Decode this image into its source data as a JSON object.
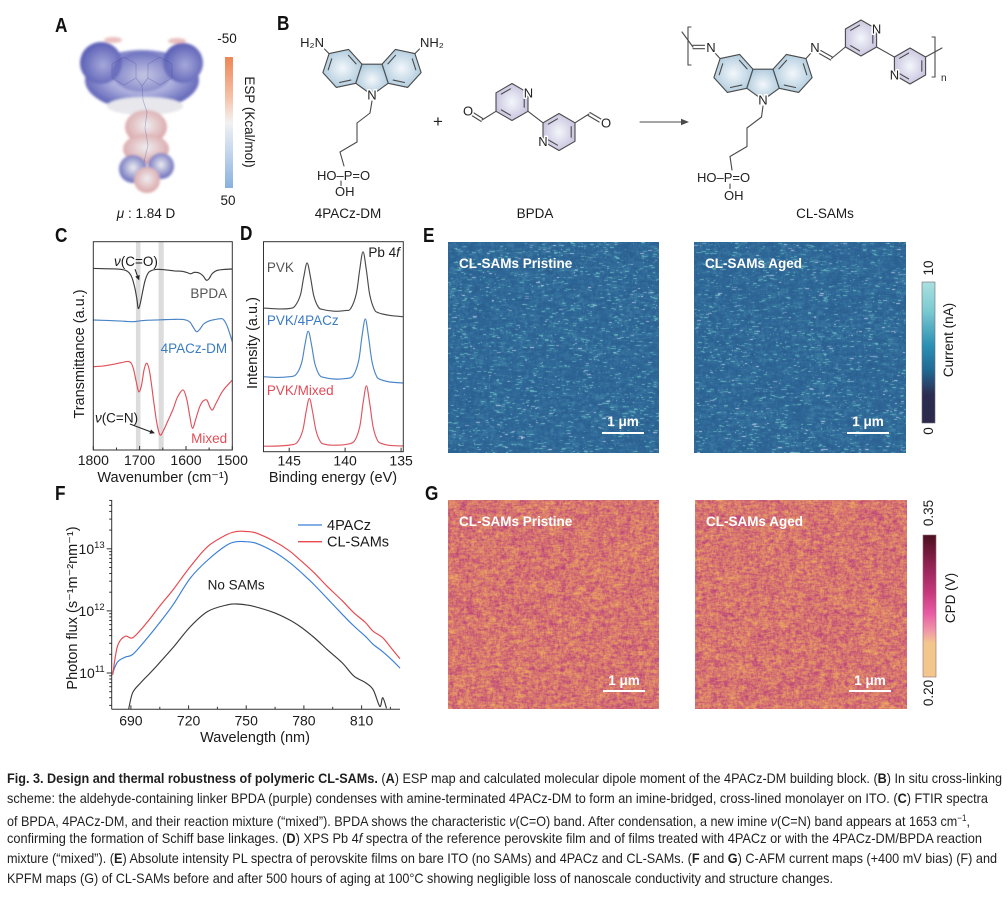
{
  "figure": {
    "panel_labels": {
      "a": "A",
      "b": "B",
      "c": "C",
      "d": "D",
      "e": "E",
      "f": "F",
      "g": "G"
    },
    "panel_a": {
      "dipole_symbol": "μ",
      "dipole_value": " : 1.84 D",
      "surface_colors": {
        "negative": "#5a5eb5",
        "negative_light": "#a6a9da",
        "neutral": "#eeeef1",
        "positive": "#d99fa1"
      },
      "colorbar": {
        "label": "ESP (Kcal/mol)",
        "top_label": "-50",
        "bottom_label": "50",
        "colors": [
          "#ee8557",
          "#f5c0a6",
          "#f2f2f2",
          "#c9d9ef",
          "#89b0df"
        ]
      }
    },
    "panel_b": {
      "plus": "+",
      "colors": {
        "bond": "#4a4a4a",
        "carbazole_ring": "#a6c5d9",
        "pyridine_ring": "#c2bcdb",
        "ring_center": "#f3f7fb"
      },
      "reactant_1": {
        "label": "4PACz-DM",
        "amine_left": "H₂N",
        "amine_right": "NH₂",
        "ring_n": "N",
        "phosphonic": "HO–P=O",
        "hydroxyl": "OH"
      },
      "reactant_2": {
        "label": "BPDA",
        "aldehyde_o_left": "O",
        "pyridine_n_1": "N",
        "pyridine_n_2": "N",
        "aldehyde_o_right": "O"
      },
      "product": {
        "label": "CL-SAMs",
        "imine_n_left": "N",
        "imine_n_right": "N",
        "ring_n": "N",
        "pyridine_n_1": "N",
        "pyridine_n_2": "N",
        "phosphonic": "HO–P=O",
        "hydroxyl": "OH",
        "repeat_index": "n"
      }
    },
    "panel_e": {
      "maps": [
        {
          "label": "CL-SAMs Pristine",
          "scale_bar": "1 μm"
        },
        {
          "label": "CL-SAMs Aged",
          "scale_bar": "1 μm"
        }
      ],
      "map_colors": {
        "base": "#2e6798",
        "dark": "#244f7c",
        "speckle": "#6fc2c6",
        "bright": "#c5d1ee"
      },
      "colorbar": {
        "label": "Current (nA)",
        "max_label": "10",
        "min_label": "0",
        "colors": [
          "#abe0df",
          "#7ccbd2",
          "#2b90b4",
          "#1f6b95",
          "#2a4168",
          "#2b2c50",
          "#2b2a4c"
        ]
      }
    },
    "panel_g": {
      "maps": [
        {
          "label": "CL-SAMs Pristine",
          "scale_bar": "1 μm"
        },
        {
          "label": "CL-SAMs Aged",
          "scale_bar": "1 μm"
        }
      ],
      "map_colors": {
        "low": "#eeab60",
        "mid": "#d8766f",
        "high": "#b9407f"
      },
      "colorbar": {
        "label": "CPD (V)",
        "max_label": "0.35",
        "min_label": "0.20",
        "colors": [
          "#4b0f20",
          "#8e2150",
          "#c4387a",
          "#e85aa4",
          "#f09aa8",
          "#f3c68e",
          "#f3c68e"
        ]
      }
    }
  },
  "chart_data": [
    {
      "id": "C",
      "type": "line",
      "title": "",
      "xlabel": "Wavenumber (cm⁻¹)",
      "ylabel": "Transmittance (a.u.)",
      "xlim": [
        1800,
        1500
      ],
      "ylim": [
        0,
        100
      ],
      "xticks": [
        1800,
        1700,
        1600,
        1500
      ],
      "xtick_labels": [
        "1800",
        "1700",
        "1600",
        "1500"
      ],
      "xminor": [
        1750,
        1650,
        1550
      ],
      "grid": false,
      "band_color": "#dcdcdc",
      "bands": [
        [
          1708,
          1698
        ],
        [
          1659,
          1648
        ]
      ],
      "series": [
        {
          "name": "BPDA",
          "color": "#3c3c3c",
          "x": [
            1800,
            1770,
            1745,
            1728,
            1718,
            1711,
            1706,
            1703,
            1699,
            1694,
            1688,
            1680,
            1665,
            1645,
            1625,
            1608,
            1598,
            1590,
            1582,
            1572,
            1563,
            1556,
            1550,
            1543,
            1533,
            1518,
            1500
          ],
          "y": [
            87.2,
            87.0,
            86.8,
            86.0,
            83.5,
            78.5,
            72.5,
            68.0,
            70.0,
            75.5,
            81.5,
            85.4,
            86.7,
            86.5,
            86.0,
            85.8,
            85.2,
            84.6,
            85.3,
            85.0,
            83.6,
            81.5,
            82.3,
            84.8,
            86.2,
            86.7,
            86.9
          ]
        },
        {
          "name": "4PACz-DM",
          "color": "#4a84c4",
          "x": [
            1800,
            1770,
            1740,
            1715,
            1700,
            1680,
            1655,
            1630,
            1605,
            1592,
            1584,
            1577,
            1570,
            1562,
            1552,
            1540,
            1528,
            1520,
            1512,
            1505,
            1500
          ],
          "y": [
            62.4,
            62.2,
            61.9,
            61.6,
            62.0,
            62.3,
            62.5,
            62.7,
            62.6,
            61.5,
            58.8,
            56.8,
            58.0,
            60.5,
            61.8,
            62.5,
            63.0,
            62.8,
            60.0,
            55.5,
            52.0
          ]
        },
        {
          "name": "Mixed",
          "color": "#e2505a",
          "x": [
            1800,
            1780,
            1760,
            1740,
            1722,
            1714,
            1708,
            1702,
            1696,
            1690,
            1684,
            1678,
            1670,
            1663,
            1656,
            1648,
            1638,
            1628,
            1618,
            1606,
            1598,
            1592,
            1586,
            1578,
            1570,
            1563,
            1555,
            1549,
            1543,
            1535,
            1520,
            1500
          ],
          "y": [
            40.0,
            40.3,
            41.0,
            41.9,
            42.4,
            39.5,
            33.5,
            28.0,
            31.0,
            39.0,
            41.6,
            37.0,
            24.0,
            13.0,
            7.2,
            9.6,
            14.5,
            19.5,
            25.5,
            28.8,
            24.0,
            16.5,
            10.4,
            15.5,
            21.0,
            23.5,
            24.0,
            21.0,
            19.2,
            22.5,
            28.5,
            33.6
          ]
        }
      ],
      "annotations": [
        {
          "symbol": "ν",
          "text": "(C=O)",
          "x": 1708,
          "y": 88.3,
          "color": "#1a1a1a",
          "arrow_from": [
            1710,
            86.8
          ],
          "arrow_to": [
            1701,
            81.4
          ]
        },
        {
          "text": "BPDA",
          "x": 1511,
          "y": 73.0,
          "color": "#555555"
        },
        {
          "text": "4PACz-DM",
          "x": 1511,
          "y": 46.6,
          "color": "#3a7bc4"
        },
        {
          "symbol": "ν",
          "text": "(C=N)",
          "x": 1750,
          "y": 13.2,
          "color": "#1a1a1a",
          "arrow_from": [
            1721,
            12.5
          ],
          "arrow_to": [
            1667,
            8.0
          ]
        },
        {
          "text": "Mixed",
          "x": 1511,
          "y": 3.4,
          "color": "#e24c57"
        }
      ]
    },
    {
      "id": "D",
      "type": "line",
      "title": "",
      "xlabel": "Binding energy (eV)",
      "ylabel": "Intensity (a.u.)",
      "xlim": [
        147.3,
        134.8
      ],
      "ylim": [
        0,
        100
      ],
      "xticks": [
        145,
        140,
        135
      ],
      "xtick_labels": [
        "145",
        "140",
        "135"
      ],
      "grid": false,
      "series": [
        {
          "name": "PVK",
          "color": "#4a4a4a",
          "x": [
            147.3,
            146,
            145,
            144.5,
            144,
            143.7,
            143.4,
            143.1,
            142.8,
            142.4,
            142,
            141,
            140,
            139.5,
            139,
            138.7,
            138.4,
            138.1,
            137.8,
            137.4,
            137,
            136,
            134.8
          ],
          "y": [
            68.4,
            68.0,
            68.2,
            69.3,
            74.6,
            83.3,
            89.9,
            83.1,
            74.2,
            68.9,
            67.7,
            66.9,
            67.2,
            68.2,
            75.2,
            86.6,
            95.2,
            86.4,
            74.8,
            67.9,
            66.1,
            64.9,
            64.3
          ]
        },
        {
          "name": "PVK/4PACz",
          "color": "#4a86c8",
          "x": [
            147.3,
            146,
            145,
            144.4,
            143.9,
            143.6,
            143.3,
            143,
            142.7,
            142.3,
            141.9,
            141,
            140,
            139.3,
            138.8,
            138.5,
            138.2,
            137.9,
            137.6,
            137.2,
            136.8,
            136,
            134.8
          ],
          "y": [
            35.7,
            35.4,
            35.7,
            36.7,
            42.1,
            50.8,
            57.4,
            50.7,
            41.8,
            36.5,
            35.4,
            34.6,
            34.8,
            36.1,
            43.2,
            54.6,
            63.2,
            54.5,
            42.9,
            36.0,
            34.3,
            33.2,
            32.7
          ]
        },
        {
          "name": "PVK/Mixed",
          "color": "#e05560",
          "x": [
            147.3,
            146,
            144.9,
            144.3,
            143.8,
            143.5,
            143.2,
            142.9,
            142.6,
            142.2,
            141.8,
            141,
            140,
            139.2,
            138.7,
            138.4,
            138.1,
            137.8,
            137.5,
            137.1,
            136.7,
            136,
            134.8
          ],
          "y": [
            2.6,
            2.7,
            3.2,
            4.4,
            9.9,
            18.7,
            25.4,
            18.7,
            9.9,
            4.7,
            3.5,
            3.1,
            3.4,
            4.9,
            11.8,
            23.0,
            31.4,
            23.0,
            11.8,
            5.3,
            3.8,
            3.0,
            2.7
          ]
        }
      ],
      "annotations": [
        {
          "text": "PVK",
          "x": 147.0,
          "y": 85.6,
          "color": "#555555"
        },
        {
          "text": "PVK/4PACz",
          "x": 147.0,
          "y": 60.3,
          "color": "#3a7bc4"
        },
        {
          "text": "PVK/Mixed",
          "x": 147.0,
          "y": 27.1,
          "color": "#e24c57"
        },
        {
          "text": "Pb 4",
          "italic": "f",
          "x": 135.1,
          "y": 92.7,
          "color": "#1a1a1a"
        }
      ]
    },
    {
      "id": "F",
      "type": "line",
      "yscale": "log",
      "title": "",
      "xlabel": "Wavelength (nm)",
      "ylabel": "Photon flux (s⁻¹m⁻²nm⁻¹)",
      "xlim": [
        680,
        830
      ],
      "ylim": [
        26000000000.0,
        61000000000000.0
      ],
      "xticks": [
        690,
        720,
        750,
        780,
        810
      ],
      "xtick_labels": [
        "690",
        "720",
        "750",
        "780",
        "810"
      ],
      "xminor": [
        705,
        735,
        765,
        795,
        825
      ],
      "yticks": [
        100000000000.0,
        1000000000000.0,
        10000000000000.0
      ],
      "ytick_labels": [
        {
          "base": "10",
          "exp": "11"
        },
        {
          "base": "10",
          "exp": "12"
        },
        {
          "base": "10",
          "exp": "13"
        }
      ],
      "grid": false,
      "legend_position": "top-right",
      "legend": [
        "4PACz",
        "CL-SAMs"
      ],
      "series": [
        {
          "name": "4PACz",
          "color": "#3b7fd8",
          "x": [
            680.5,
            683,
            687,
            691,
            698,
            705,
            712,
            721,
            730,
            740,
            745,
            750,
            755,
            764,
            772,
            778,
            785,
            792,
            800,
            806,
            812,
            816,
            821,
            826,
            830
          ],
          "y": [
            100000000000.0,
            150000000000.0,
            180000000000.0,
            200000000000.0,
            350000000000.0,
            650000000000.0,
            1260000000000.0,
            3400000000000.0,
            6600000000000.0,
            11500000000000.0,
            13000000000000.0,
            13000000000000.0,
            12300000000000.0,
            9100000000000.0,
            6200000000000.0,
            4300000000000.0,
            2700000000000.0,
            1600000000000.0,
            880000000000.0,
            570000000000.0,
            390000000000.0,
            290000000000.0,
            220000000000.0,
            160000000000.0,
            120000000000.0
          ]
        },
        {
          "name": "CL-SAMs",
          "color": "#e8474d",
          "x": [
            680.5,
            683,
            687,
            691,
            698,
            705,
            712,
            721,
            730,
            740,
            745,
            750,
            755,
            764,
            772,
            778,
            785,
            792,
            800,
            806,
            812,
            816,
            821,
            826,
            830
          ],
          "y": [
            93000000000.0,
            270000000000.0,
            390000000000.0,
            370000000000.0,
            630000000000.0,
            1200000000000.0,
            2200000000000.0,
            5200000000000.0,
            10900000000000.0,
            17000000000000.0,
            19000000000000.0,
            19000000000000.0,
            18000000000000.0,
            13500000000000.0,
            9500000000000.0,
            6600000000000.0,
            4200000000000.0,
            2500000000000.0,
            1450000000000.0,
            930000000000.0,
            650000000000.0,
            470000000000.0,
            370000000000.0,
            240000000000.0,
            170000000000.0
          ]
        },
        {
          "name": "No SAMs",
          "color": "#3a3a3a",
          "x": [
            688.8,
            690.9,
            695,
            700,
            704,
            712.5,
            721,
            730,
            740,
            745,
            750,
            754,
            764,
            772,
            778,
            785,
            792,
            800,
            806,
            812,
            816,
            819.5,
            821,
            823
          ],
          "y": [
            26000000000.0,
            48000000000.0,
            69000000000.0,
            100000000000.0,
            136000000000.0,
            270000000000.0,
            560000000000.0,
            980000000000.0,
            1250000000000.0,
            1290000000000.0,
            1250000000000.0,
            1180000000000.0,
            950000000000.0,
            730000000000.0,
            560000000000.0,
            380000000000.0,
            240000000000.0,
            145000000000.0,
            89000000000.0,
            70000000000.0,
            54000000000.0,
            29000000000.0,
            40000000000.0,
            27000000000.0
          ]
        }
      ],
      "annotations": [
        {
          "text": "No SAMs",
          "x": 744.7,
          "y": 2200000000000.0,
          "color": "#1a1a1a"
        }
      ]
    }
  ],
  "caption": {
    "lines": [
      [
        {
          "t": "Fig. 3. Design and thermal robustness of polymeric CL-SAMs.",
          "b": true
        },
        {
          "t": " ("
        },
        {
          "t": "A",
          "b": true
        },
        {
          "t": ") ESP map and calculated molecular dipole moment of the 4PACz-DM building block. ("
        },
        {
          "t": "B",
          "b": true
        },
        {
          "t": ") In situ cross-linking"
        }
      ],
      [
        {
          "t": "scheme: the aldehyde-containing linker BPDA (purple) condenses with amine-terminated 4PACz-DM to form an imine-bridged, cross-lined monolayer on ITO. ("
        },
        {
          "t": "C",
          "b": true
        },
        {
          "t": ") FTIR spectra"
        }
      ],
      [
        {
          "t": "of BPDA, 4PACz-DM, and their reaction mix­ture (“mixed”). BPDA shows the characteristic "
        },
        {
          "t": "ν",
          "i": true
        },
        {
          "t": "(C=O) band. After condensation, a new imine "
        },
        {
          "t": "ν",
          "i": true
        },
        {
          "t": "(C=N) band appears at 1653 cm"
        },
        {
          "t": "−1",
          "sup": true
        },
        {
          "t": ","
        }
      ],
      [
        {
          "t": "confirming the formation of Schiff base linkages. ("
        },
        {
          "t": "D",
          "b": true
        },
        {
          "t": ") XPS Pb 4"
        },
        {
          "t": "f",
          "i": true
        },
        {
          "t": " spectra of the reference perovskite film and of films treated with 4PACz or with the 4PACz-DM/BPDA reaction"
        }
      ],
      [
        {
          "t": "mixture (“mixed”). ("
        },
        {
          "t": "E",
          "b": true
        },
        {
          "t": ") Absolute intensity PL spectra of perovskite films on bare ITO (no SAMs) and 4PACz and CL-SAMs. ("
        },
        {
          "t": "F",
          "b": true
        },
        {
          "t": " and "
        },
        {
          "t": "G",
          "b": true
        },
        {
          "t": ") C-AFM current maps (+400 mV bias) (F) and"
        }
      ],
      [
        {
          "t": "KPFM maps (G) of CL-SAMs before and after 500 hours of aging at 100°C showing negligible loss of nanoscale conductivity and structure changes."
        }
      ]
    ]
  }
}
